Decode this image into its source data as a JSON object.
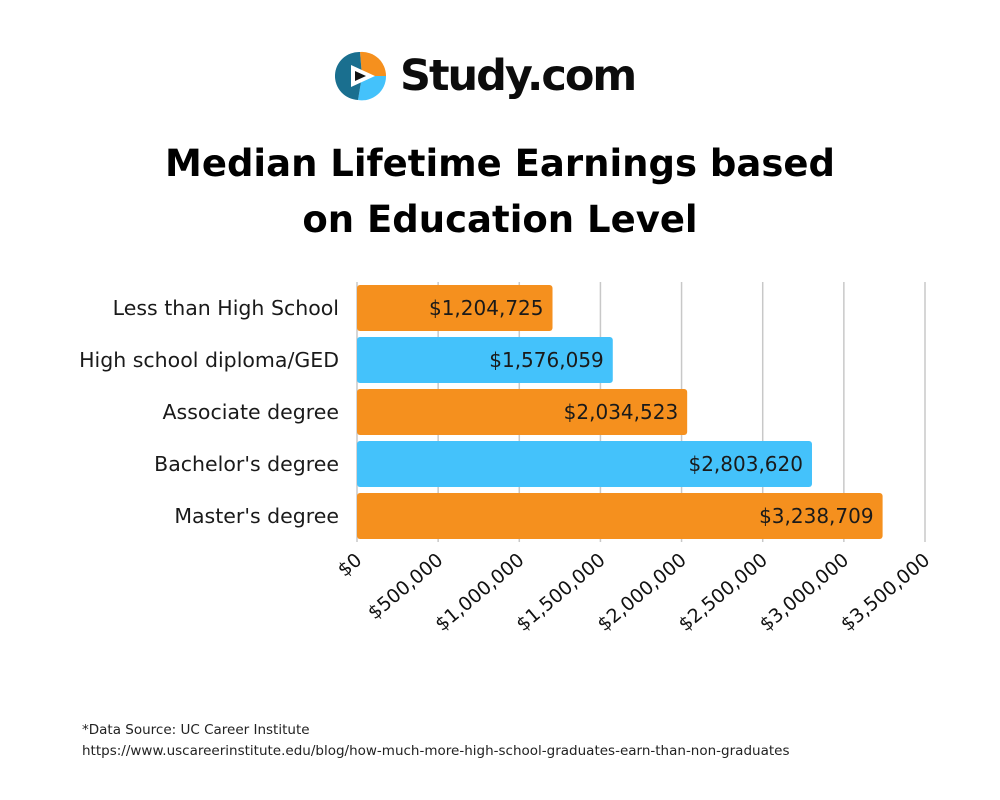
{
  "brand": {
    "name": "Study.com"
  },
  "footer": {
    "source": "*Data Source: UC Career Institute",
    "url": "https://www.uscareerinstitute.edu/blog/how-much-more-high-school-graduates-earn-than-non-graduates"
  },
  "colors": {
    "orange": "#f5901e",
    "blue": "#44c2fb",
    "grid": "#c8c8c8"
  },
  "chart_data": {
    "type": "bar",
    "orientation": "horizontal",
    "title": "Median Lifetime Earnings based on Education Level",
    "title_lines": [
      "Median Lifetime Earnings based",
      "on Education Level"
    ],
    "categories": [
      "Less than High School",
      "High school diploma/GED",
      "Associate degree",
      "Bachelor's degree",
      "Master's degree"
    ],
    "values": [
      1204725,
      1576059,
      2034523,
      2803620,
      3238709
    ],
    "value_labels": [
      "$1,204,725",
      "$1,576,059",
      "$2,034,523",
      "$2,803,620",
      "$3,238,709"
    ],
    "bar_colors": [
      "#f5901e",
      "#44c2fb",
      "#f5901e",
      "#44c2fb",
      "#f5901e"
    ],
    "xlim": [
      0,
      3500000
    ],
    "x_ticks": [
      0,
      500000,
      1000000,
      1500000,
      2000000,
      2500000,
      3000000,
      3500000
    ],
    "x_tick_labels": [
      "$0",
      "$500,000",
      "$1,000,000",
      "$1,500,000",
      "$2,000,000",
      "$2,500,000",
      "$3,000,000",
      "$3,500,000"
    ],
    "grid": true,
    "legend": "none"
  }
}
